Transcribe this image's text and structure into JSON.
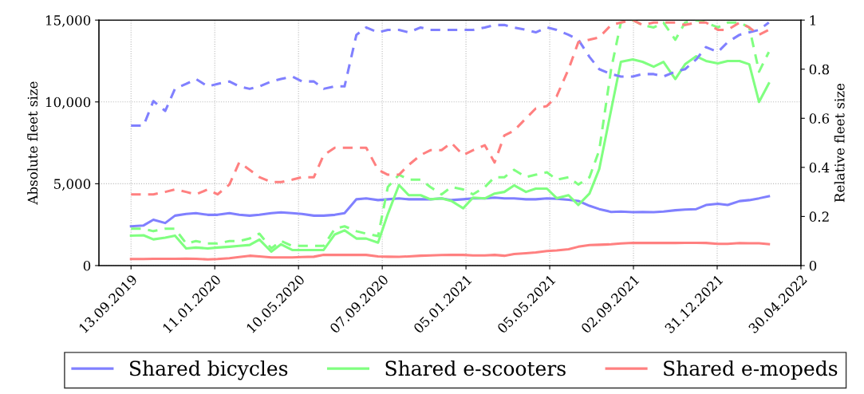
{
  "chart_data": {
    "type": "line",
    "ylabel": "Absolute fleet size",
    "y2label": "Relative fleet size",
    "x": [
      "2019-09-13",
      "2019-10-01",
      "2019-10-15",
      "2019-11-01",
      "2019-11-15",
      "2019-12-01",
      "2019-12-15",
      "2020-01-01",
      "2020-01-15",
      "2020-02-01",
      "2020-02-15",
      "2020-03-01",
      "2020-03-15",
      "2020-04-01",
      "2020-04-15",
      "2020-05-01",
      "2020-05-15",
      "2020-06-01",
      "2020-06-15",
      "2020-07-01",
      "2020-07-15",
      "2020-08-01",
      "2020-08-15",
      "2020-09-01",
      "2020-09-15",
      "2020-10-01",
      "2020-10-15",
      "2020-11-01",
      "2020-11-15",
      "2020-12-01",
      "2020-12-15",
      "2021-01-01",
      "2021-01-15",
      "2021-02-01",
      "2021-02-15",
      "2021-03-01",
      "2021-03-15",
      "2021-04-01",
      "2021-04-15",
      "2021-05-01",
      "2021-05-15",
      "2021-06-01",
      "2021-06-15",
      "2021-07-01",
      "2021-07-15",
      "2021-08-01",
      "2021-08-15",
      "2021-09-01",
      "2021-09-15",
      "2021-10-01",
      "2021-10-15",
      "2021-11-01",
      "2021-11-15",
      "2021-12-01",
      "2021-12-15",
      "2022-01-01",
      "2022-01-15",
      "2022-02-01",
      "2022-02-15",
      "2022-03-01",
      "2022-03-15"
    ],
    "series": [
      {
        "name": "Shared bicycles",
        "color": "#8080ff",
        "line_style": "solid",
        "values": [
          2400,
          2450,
          2800,
          2600,
          3050,
          3150,
          3200,
          3100,
          3100,
          3200,
          3100,
          3050,
          3100,
          3200,
          3250,
          3200,
          3150,
          3050,
          3050,
          3100,
          3200,
          4050,
          4100,
          4000,
          4050,
          4100,
          4050,
          4050,
          4050,
          4100,
          4000,
          4050,
          4100,
          4100,
          4150,
          4100,
          4100,
          4050,
          4050,
          4100,
          4080,
          4020,
          3950,
          3650,
          3450,
          3280,
          3300,
          3260,
          3280,
          3260,
          3300,
          3380,
          3420,
          3450,
          3700,
          3780,
          3700,
          3940,
          4000,
          4110,
          4240
        ]
      },
      {
        "name": "Shared e-scooters",
        "color": "#80ff80",
        "line_style": "solid",
        "values": [
          1830,
          1850,
          1600,
          1700,
          1830,
          1050,
          1100,
          1050,
          1100,
          1150,
          1200,
          1260,
          1590,
          850,
          1300,
          950,
          950,
          950,
          950,
          1900,
          2150,
          1650,
          1650,
          1400,
          3150,
          4920,
          4300,
          4300,
          4050,
          4100,
          3950,
          3500,
          4150,
          4100,
          4400,
          4500,
          4900,
          4500,
          4700,
          4700,
          4120,
          4300,
          3700,
          4400,
          5900,
          9500,
          12450,
          12600,
          12450,
          12150,
          12450,
          11400,
          12300,
          12790,
          12500,
          12350,
          12500,
          12500,
          12300,
          10000,
          11130
        ]
      },
      {
        "name": "Shared e-mopeds",
        "color": "#ff8080",
        "line_style": "solid",
        "values": [
          400,
          400,
          410,
          410,
          410,
          420,
          410,
          380,
          400,
          450,
          520,
          600,
          560,
          500,
          500,
          500,
          520,
          540,
          650,
          650,
          650,
          650,
          650,
          560,
          540,
          530,
          560,
          600,
          620,
          640,
          650,
          650,
          620,
          620,
          650,
          600,
          700,
          750,
          800,
          890,
          920,
          1000,
          1150,
          1250,
          1270,
          1300,
          1350,
          1390,
          1380,
          1380,
          1380,
          1380,
          1390,
          1390,
          1380,
          1330,
          1330,
          1370,
          1360,
          1360,
          1310
        ]
      },
      {
        "color": "#8080ff",
        "line_style": "dashed",
        "axis": "y2",
        "values": [
          0.57,
          0.57,
          0.67,
          0.63,
          0.72,
          0.74,
          0.76,
          0.73,
          0.74,
          0.75,
          0.73,
          0.72,
          0.73,
          0.75,
          0.76,
          0.77,
          0.75,
          0.75,
          0.72,
          0.73,
          0.73,
          0.94,
          0.97,
          0.95,
          0.96,
          0.96,
          0.95,
          0.97,
          0.96,
          0.96,
          0.96,
          0.96,
          0.96,
          0.97,
          0.98,
          0.98,
          0.97,
          0.96,
          0.95,
          0.97,
          0.96,
          0.94,
          0.92,
          0.85,
          0.8,
          0.78,
          0.77,
          0.77,
          0.78,
          0.78,
          0.77,
          0.79,
          0.8,
          0.84,
          0.89,
          0.87,
          0.91,
          0.94,
          0.95,
          0.96,
          0.99
        ]
      },
      {
        "color": "#80ff80",
        "line_style": "dashed",
        "axis": "y2",
        "values": [
          0.15,
          0.15,
          0.14,
          0.15,
          0.15,
          0.09,
          0.1,
          0.09,
          0.09,
          0.1,
          0.1,
          0.11,
          0.13,
          0.07,
          0.1,
          0.08,
          0.08,
          0.08,
          0.08,
          0.15,
          0.16,
          0.14,
          0.13,
          0.12,
          0.32,
          0.37,
          0.35,
          0.35,
          0.32,
          0.29,
          0.32,
          0.31,
          0.29,
          0.32,
          0.36,
          0.36,
          0.39,
          0.36,
          0.37,
          0.38,
          0.35,
          0.36,
          0.33,
          0.36,
          0.47,
          0.8,
          0.99,
          1.0,
          0.98,
          0.97,
          0.99,
          0.92,
          0.99,
          1.0,
          0.99,
          0.97,
          0.99,
          0.99,
          0.97,
          0.79,
          0.87
        ]
      },
      {
        "color": "#ff8080",
        "line_style": "dashed",
        "axis": "y2",
        "values": [
          0.29,
          0.29,
          0.29,
          0.3,
          0.31,
          0.3,
          0.29,
          0.31,
          0.29,
          0.33,
          0.42,
          0.39,
          0.36,
          0.34,
          0.34,
          0.35,
          0.36,
          0.36,
          0.45,
          0.48,
          0.48,
          0.48,
          0.48,
          0.39,
          0.37,
          0.37,
          0.41,
          0.45,
          0.47,
          0.47,
          0.5,
          0.45,
          0.47,
          0.49,
          0.42,
          0.53,
          0.55,
          0.6,
          0.64,
          0.65,
          0.69,
          0.8,
          0.91,
          0.92,
          0.93,
          0.98,
          0.99,
          1.0,
          0.98,
          0.99,
          0.99,
          0.99,
          0.98,
          0.99,
          0.99,
          0.96,
          0.96,
          0.99,
          0.97,
          0.94,
          0.96
        ]
      }
    ],
    "xlim": [
      "2019-07-29",
      "2022-04-30"
    ],
    "xticks": [
      {
        "value": "2019-09-13",
        "label": "13.09.2019"
      },
      {
        "value": "2020-01-11",
        "label": "11.01.2020"
      },
      {
        "value": "2020-05-10",
        "label": "10.05.2020"
      },
      {
        "value": "2020-09-07",
        "label": "07.09.2020"
      },
      {
        "value": "2021-01-05",
        "label": "05.01.2021"
      },
      {
        "value": "2021-05-05",
        "label": "05.05.2021"
      },
      {
        "value": "2021-09-02",
        "label": "02.09.2021"
      },
      {
        "value": "2021-12-31",
        "label": "31.12.2021"
      },
      {
        "value": "2022-04-30",
        "label": "30.04.2022"
      }
    ],
    "ylim": [
      0,
      15000
    ],
    "yticks": [
      0,
      {
        "value": 5000,
        "label": "5,000"
      },
      {
        "value": 10000,
        "label": "10,000"
      },
      {
        "value": 15000,
        "label": "15,000"
      }
    ],
    "y2lim": [
      0,
      1
    ],
    "y2ticks": [
      0,
      0.2,
      0.4,
      0.6,
      0.8,
      1
    ],
    "grid": true,
    "legend": "bottom",
    "marker": "none"
  }
}
